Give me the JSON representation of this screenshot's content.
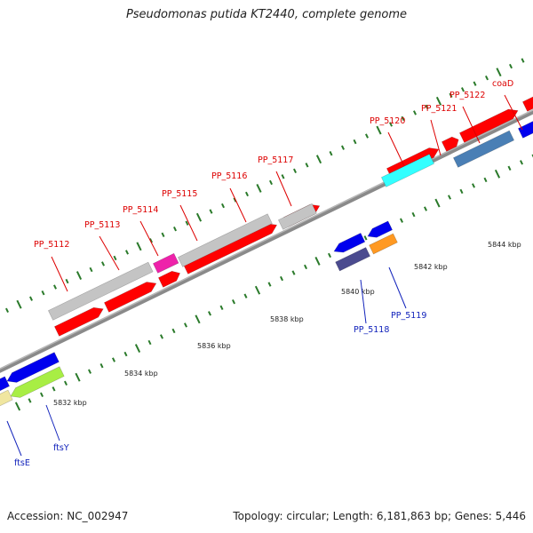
{
  "title": "Pseudomonas putida KT2440, complete genome",
  "footer": {
    "accession": "Accession: NC_002947",
    "summary": "Topology: circular; Length: 6,181,863 bp; Genes: 5,446"
  },
  "colors": {
    "red": "#ff0000",
    "grey": "#c4c4c4",
    "blue": "#0000ee",
    "cyan": "#33ffff",
    "magenta": "#ee22aa",
    "steelblue": "#4a7fb5",
    "slate": "#4b4b8f",
    "orange": "#ff9922",
    "lime": "#a8ee44",
    "khaki": "#f0e6a0",
    "backbone": "#8a8a8a",
    "tick": "#2a7a2a",
    "label_red": "#dd0000",
    "label_blue": "#1122bb"
  },
  "scale": {
    "labels": [
      "5832 kbp",
      "5834 kbp",
      "5836 kbp",
      "5838 kbp",
      "5840 kbp",
      "5842 kbp",
      "5844 kbp"
    ]
  },
  "genes": [
    {
      "label": "PP_5112",
      "strand": "upper"
    },
    {
      "label": "PP_5113",
      "strand": "upper"
    },
    {
      "label": "PP_5114",
      "strand": "upper"
    },
    {
      "label": "PP_5115",
      "strand": "upper"
    },
    {
      "label": "PP_5116",
      "strand": "upper"
    },
    {
      "label": "PP_5117",
      "strand": "upper"
    },
    {
      "label": "PP_5120",
      "strand": "upper"
    },
    {
      "label": "PP_5121",
      "strand": "upper"
    },
    {
      "label": "PP_5122",
      "strand": "upper"
    },
    {
      "label": "coaD",
      "strand": "upper"
    },
    {
      "label": "PP_5118",
      "strand": "lower"
    },
    {
      "label": "PP_5119",
      "strand": "lower"
    },
    {
      "label": "ftsE",
      "strand": "lower"
    },
    {
      "label": "ftsY",
      "strand": "lower"
    }
  ]
}
